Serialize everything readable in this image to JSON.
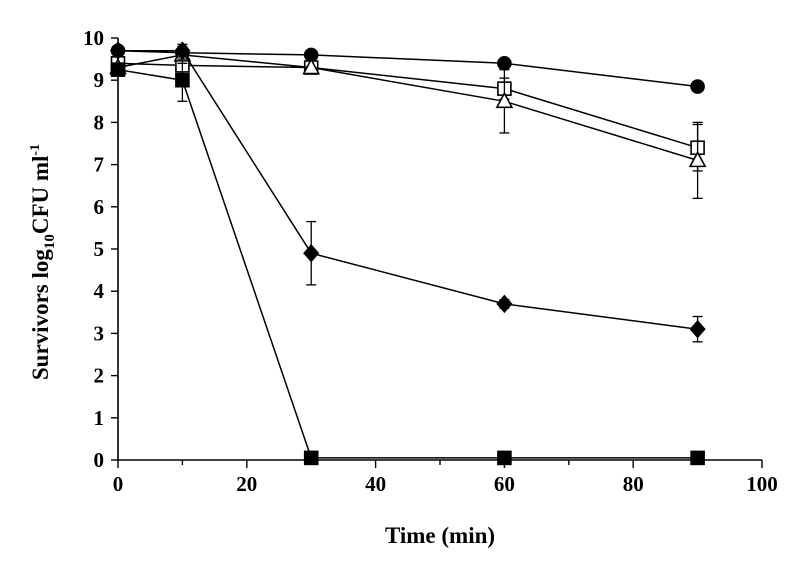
{
  "chart_data": {
    "type": "line",
    "title": "",
    "xlabel": "Time (min)",
    "ylabel": {
      "main": "Survivors log",
      "subscript": "10",
      "unit": "CFU ml",
      "superscript": "-1"
    },
    "xlim": [
      0,
      100
    ],
    "ylim": [
      0,
      10
    ],
    "xticks": [
      "0",
      "20",
      "40",
      "60",
      "80",
      "100"
    ],
    "yticks": [
      "0",
      "1",
      "2",
      "3",
      "4",
      "5",
      "6",
      "7",
      "8",
      "9",
      "10"
    ],
    "grid": false,
    "legend": "none",
    "series": [
      {
        "name": "filled-circle",
        "marker": "circle",
        "filled": true,
        "x": [
          0,
          10,
          30,
          60,
          90
        ],
        "y": [
          9.7,
          9.65,
          9.6,
          9.4,
          8.85
        ],
        "error": [
          0,
          0,
          0,
          0,
          0
        ]
      },
      {
        "name": "open-square",
        "marker": "square",
        "filled": false,
        "x": [
          0,
          10,
          30,
          60,
          90
        ],
        "y": [
          9.4,
          9.35,
          9.3,
          8.8,
          7.4
        ],
        "error": [
          0,
          0,
          0,
          0.25,
          0.55
        ]
      },
      {
        "name": "open-triangle",
        "marker": "triangle",
        "filled": false,
        "x": [
          0,
          10,
          30,
          60,
          90
        ],
        "y": [
          9.3,
          9.6,
          9.3,
          8.5,
          7.1
        ],
        "error": [
          0,
          0.2,
          0,
          0.75,
          0.9
        ]
      },
      {
        "name": "filled-diamond",
        "marker": "diamond",
        "filled": true,
        "x": [
          0,
          10,
          30,
          60,
          90
        ],
        "y": [
          9.7,
          9.7,
          4.9,
          3.7,
          3.1
        ],
        "error": [
          0,
          0.15,
          0.75,
          0.1,
          0.3
        ]
      },
      {
        "name": "filled-square",
        "marker": "square",
        "filled": true,
        "x": [
          0,
          10,
          30,
          60,
          90
        ],
        "y": [
          9.25,
          9.0,
          0.05,
          0.05,
          0.05
        ],
        "error": [
          0,
          0.5,
          0,
          0,
          0
        ]
      }
    ]
  }
}
